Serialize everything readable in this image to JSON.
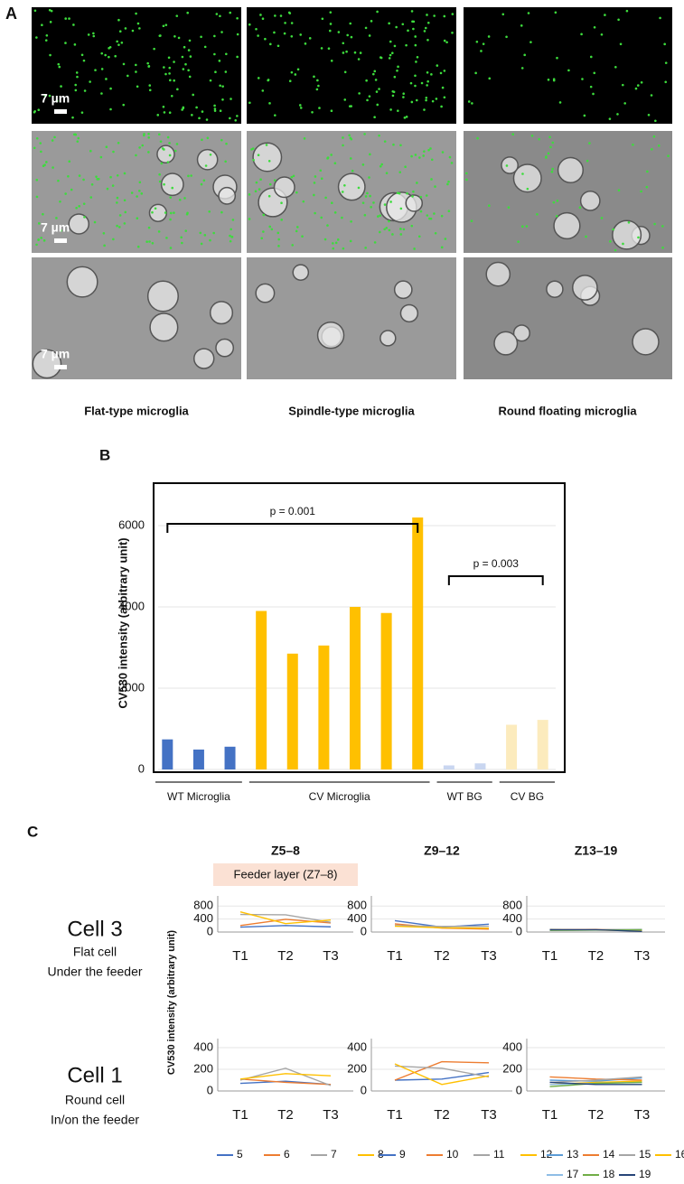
{
  "panel_a": {
    "label": "A",
    "scale_labels": [
      "7 µm",
      "7 µm",
      "7 µm"
    ],
    "captions": [
      "Flat-type microglia",
      "Spindle-type microglia",
      "Round floating microglia"
    ]
  },
  "panel_b_label": "B",
  "panel_c": {
    "label": "C",
    "feeder_note": "Feeder layer (Z7–8)",
    "y_label": "CV530 intensity (arbitrary unit)",
    "rows": [
      {
        "title": "Cell 3",
        "lines": [
          "Flat cell",
          "Under the feeder"
        ]
      },
      {
        "title": "Cell 1",
        "lines": [
          "Round cell",
          "In/on the feeder"
        ]
      }
    ]
  },
  "chart_data": [
    {
      "type": "bar",
      "y_label": "CV530 intensity (arbitrary unit)",
      "ylim": [
        0,
        7000
      ],
      "yticks": [
        0,
        2000,
        4000,
        6000
      ],
      "grid": true,
      "series": [
        {
          "name": "WT Microglia",
          "color": "#4472c4",
          "values": [
            740,
            490,
            560
          ]
        },
        {
          "name": "CV Microglia",
          "color": "#ffc000",
          "values": [
            3900,
            2850,
            3050,
            4000,
            3850,
            6200
          ]
        },
        {
          "name": "WT BG",
          "color": "#c9d6f0",
          "values": [
            100,
            150
          ]
        },
        {
          "name": "CV BG",
          "color": "#fcebbd",
          "values": [
            1100,
            1220
          ]
        }
      ],
      "annotations": [
        "p = 0.001",
        "p = 0.003"
      ]
    },
    {
      "type": "line",
      "title": "Z5–8",
      "categories": [
        "T1",
        "T2",
        "T3"
      ],
      "ylim": [
        0,
        1000
      ],
      "yticks": [
        0,
        400,
        800
      ],
      "grid": true,
      "series": [
        {
          "color": "#4472c4",
          "values": [
            150,
            200,
            160
          ]
        },
        {
          "color": "#ed7d31",
          "values": [
            200,
            390,
            280
          ]
        },
        {
          "color": "#a5a5a5",
          "values": [
            540,
            530,
            300
          ]
        },
        {
          "color": "#ffc000",
          "values": [
            620,
            260,
            370
          ]
        }
      ]
    },
    {
      "type": "line",
      "title": "Z9–12",
      "categories": [
        "T1",
        "T2",
        "T3"
      ],
      "ylim": [
        0,
        1000
      ],
      "yticks": [
        0,
        400,
        800
      ],
      "grid": true,
      "series": [
        {
          "color": "#4472c4",
          "values": [
            350,
            150,
            240
          ]
        },
        {
          "color": "#ed7d31",
          "values": [
            250,
            120,
            90
          ]
        },
        {
          "color": "#a5a5a5",
          "values": [
            200,
            170,
            180
          ]
        },
        {
          "color": "#ffc000",
          "values": [
            180,
            130,
            120
          ]
        }
      ]
    },
    {
      "type": "line",
      "title": "Z13–19",
      "categories": [
        "T1",
        "T2",
        "T3"
      ],
      "ylim": [
        0,
        1000
      ],
      "yticks": [
        0,
        400,
        800
      ],
      "grid": true,
      "series": [
        {
          "color": "#5b9bd5",
          "values": [
            80,
            70,
            60
          ]
        },
        {
          "color": "#ed7d31",
          "values": [
            70,
            80,
            50
          ]
        },
        {
          "color": "#a5a5a5",
          "values": [
            60,
            70,
            80
          ]
        },
        {
          "color": "#ffc000",
          "values": [
            70,
            60,
            40
          ]
        },
        {
          "color": "#8fbde6",
          "values": [
            60,
            60,
            70
          ]
        },
        {
          "color": "#70ad47",
          "values": [
            50,
            60,
            70
          ]
        },
        {
          "color": "#264478",
          "values": [
            70,
            70,
            20
          ]
        }
      ]
    },
    {
      "type": "line",
      "categories": [
        "T1",
        "T2",
        "T3"
      ],
      "ylim": [
        0,
        450
      ],
      "yticks": [
        0,
        200,
        400
      ],
      "grid": true,
      "series": [
        {
          "name": "5",
          "color": "#4472c4",
          "values": [
            70,
            90,
            60
          ]
        },
        {
          "name": "6",
          "color": "#ed7d31",
          "values": [
            110,
            80,
            60
          ]
        },
        {
          "name": "7",
          "color": "#a5a5a5",
          "values": [
            100,
            210,
            50
          ]
        },
        {
          "name": "8",
          "color": "#ffc000",
          "values": [
            110,
            160,
            140
          ]
        }
      ]
    },
    {
      "type": "line",
      "categories": [
        "T1",
        "T2",
        "T3"
      ],
      "ylim": [
        0,
        450
      ],
      "yticks": [
        0,
        200,
        400
      ],
      "grid": true,
      "series": [
        {
          "name": "9",
          "color": "#4472c4",
          "values": [
            100,
            110,
            170
          ]
        },
        {
          "name": "10",
          "color": "#ed7d31",
          "values": [
            100,
            270,
            260
          ]
        },
        {
          "name": "11",
          "color": "#a5a5a5",
          "values": [
            230,
            210,
            130
          ]
        },
        {
          "name": "12",
          "color": "#ffc000",
          "values": [
            250,
            60,
            140
          ]
        }
      ]
    },
    {
      "type": "line",
      "categories": [
        "T1",
        "T2",
        "T3"
      ],
      "ylim": [
        0,
        450
      ],
      "yticks": [
        0,
        200,
        400
      ],
      "grid": true,
      "series": [
        {
          "name": "13",
          "color": "#5b9bd5",
          "values": [
            100,
            90,
            120
          ]
        },
        {
          "name": "14",
          "color": "#ed7d31",
          "values": [
            130,
            110,
            100
          ]
        },
        {
          "name": "15",
          "color": "#a5a5a5",
          "values": [
            80,
            100,
            130
          ]
        },
        {
          "name": "16",
          "color": "#ffc000",
          "values": [
            60,
            80,
            90
          ]
        },
        {
          "name": "17",
          "color": "#8fbde6",
          "values": [
            60,
            70,
            80
          ]
        },
        {
          "name": "18",
          "color": "#70ad47",
          "values": [
            40,
            70,
            80
          ]
        },
        {
          "name": "19",
          "color": "#264478",
          "values": [
            80,
            60,
            60
          ]
        }
      ]
    }
  ]
}
